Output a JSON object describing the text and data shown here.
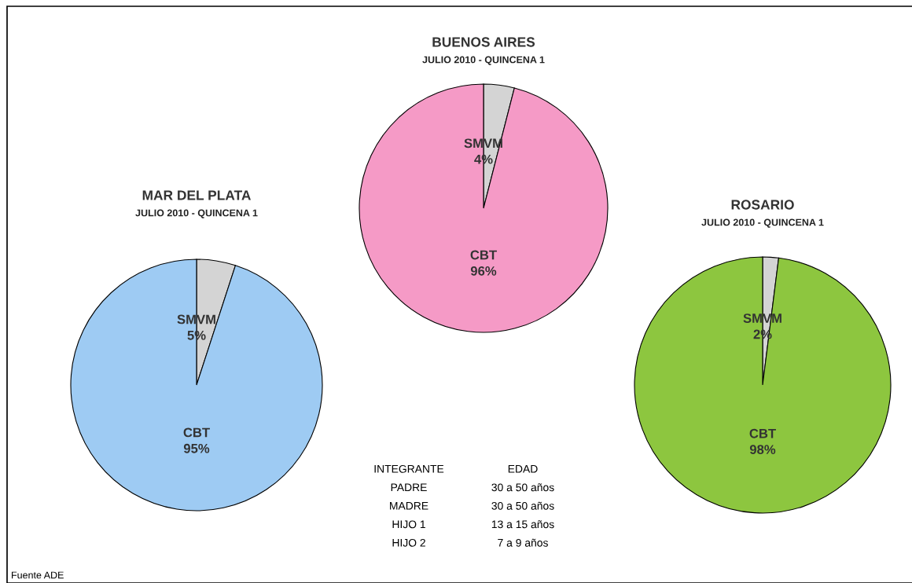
{
  "chart_data": [
    {
      "type": "pie",
      "title": "MAR DEL PLATA",
      "subtitle": "JULIO 2010 - QUINCENA 1",
      "categories": [
        "SMVM",
        "CBT"
      ],
      "values": [
        5,
        95
      ],
      "colors": [
        "#d4d4d4",
        "#9ecbf3"
      ],
      "value_labels": [
        "5%",
        "95%"
      ]
    },
    {
      "type": "pie",
      "title": "BUENOS AIRES",
      "subtitle": "JULIO 2010 - QUINCENA 1",
      "categories": [
        "SMVM",
        "CBT"
      ],
      "values": [
        4,
        96
      ],
      "colors": [
        "#d4d4d4",
        "#f59ac6"
      ],
      "value_labels": [
        "4%",
        "96%"
      ]
    },
    {
      "type": "pie",
      "title": "ROSARIO",
      "subtitle": "JULIO 2010 - QUINCENA 1",
      "categories": [
        "SMVM",
        "CBT"
      ],
      "values": [
        2,
        98
      ],
      "colors": [
        "#d4d4d4",
        "#8dc63f"
      ],
      "value_labels": [
        "2%",
        "98%"
      ]
    },
    {
      "type": "other",
      "categories": [
        "INTEGRANTE",
        "PADRE",
        "MADRE",
        "HIJO 1",
        "HIJO 2"
      ],
      "value_labels": [
        "EDAD",
        "30 a 50 años",
        "30 a 50 años",
        "13 a 15 años",
        "7 a 9 años"
      ],
      "annotations": [
        "Fuente ADE"
      ]
    }
  ]
}
